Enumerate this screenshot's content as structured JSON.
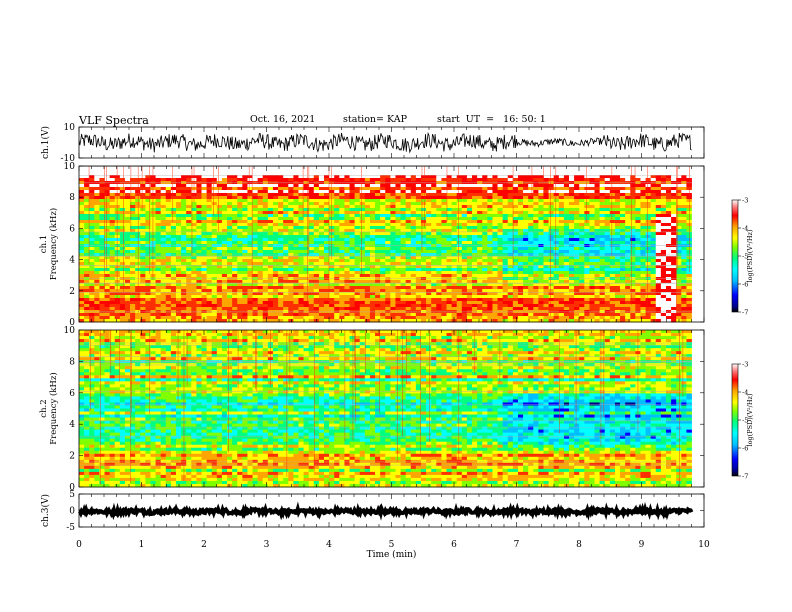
{
  "header": {
    "title": "VLF Spectra",
    "date": "Oct. 16, 2021",
    "station": "station= KAP",
    "start": "start  UT  =   16: 50: 1"
  },
  "chart_data": [
    {
      "type": "line",
      "ylabel": "ch.1(V)",
      "ylim": [
        -10,
        10
      ],
      "yticks": [
        "10",
        "-10"
      ],
      "xlim": [
        0,
        10
      ],
      "description_values": {
        "x_start": 0,
        "x_end": 9.8,
        "y_center": 0,
        "y_swing": 5
      }
    },
    {
      "type": "heatmap",
      "ylabel": "ch.1\nFrequency (kHz)",
      "ylim": [
        0,
        10
      ],
      "yticks": [
        "0",
        "2",
        "4",
        "6",
        "8",
        "10"
      ],
      "xlim": [
        0,
        9.8
      ],
      "colorbar": {
        "label": "log(PSD)(V²/Hz)",
        "range": [
          -7,
          -3
        ],
        "ticks": [
          "-3",
          "-4",
          "-5",
          "-6",
          "-7"
        ]
      },
      "change_time_min": 6.7,
      "burst_interval_min": [
        9.2,
        9.5
      ]
    },
    {
      "type": "heatmap",
      "ylabel": "ch.2\nFrequency (kHz)",
      "ylim": [
        0,
        10
      ],
      "yticks": [
        "0",
        "2",
        "4",
        "6",
        "8",
        "10"
      ],
      "xlim": [
        0,
        9.8
      ],
      "colorbar": {
        "label": "log(PSD)(V²/Hz)",
        "range": [
          -7,
          -3
        ],
        "ticks": [
          "-3",
          "-4",
          "-5",
          "-6",
          "-7"
        ]
      },
      "change_time_min": 6.7
    },
    {
      "type": "line",
      "ylabel": "ch.3(V)",
      "ylim": [
        -5,
        5
      ],
      "yticks": [
        "5",
        "0",
        "-5"
      ],
      "xlim": [
        0,
        10
      ],
      "description_values": {
        "x_start": 0,
        "x_end": 9.8,
        "y_center": -0.3,
        "y_swing": 0.6
      }
    }
  ],
  "xaxis": {
    "label": "Time  (min)",
    "ticks": [
      "0",
      "1",
      "2",
      "3",
      "4",
      "5",
      "6",
      "7",
      "8",
      "9",
      "10"
    ],
    "range": [
      0,
      10
    ]
  },
  "colors": {
    "colormap": [
      "#00008b",
      "#0000ff",
      "#00bfff",
      "#00ffff",
      "#00ff80",
      "#80ff00",
      "#ffff00",
      "#ffa500",
      "#ff3000",
      "#ff0000",
      "#ffffff"
    ],
    "trace": "#000000"
  }
}
